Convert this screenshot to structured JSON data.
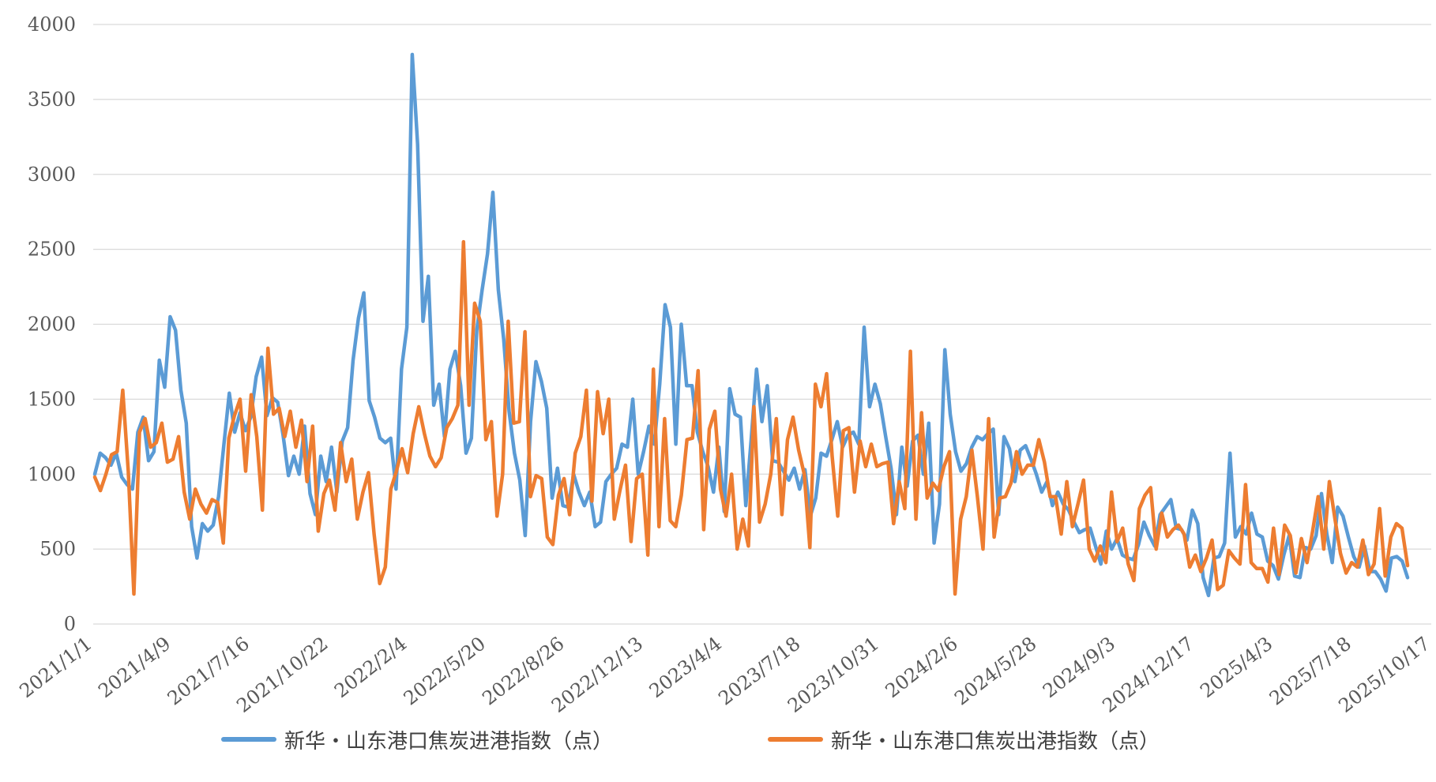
{
  "chart_data": {
    "type": "line",
    "ylim": [
      0,
      4000
    ],
    "yticks": [
      0,
      500,
      1000,
      1500,
      2000,
      2500,
      3000,
      3500,
      4000
    ],
    "grid": true,
    "legend_position": "bottom",
    "xtick_labels": [
      "2021/1/1",
      "2021/4/9",
      "2021/7/16",
      "2021/10/22",
      "2022/2/4",
      "2022/5/20",
      "2022/8/26",
      "2022/12/13",
      "2023/4/4",
      "2023/7/18",
      "2023/10/31",
      "2024/2/6",
      "2024/5/28",
      "2024/9/3",
      "2024/12/17",
      "2025/4/3",
      "2025/7/18",
      "2025/10/17"
    ],
    "series": [
      {
        "name": "新华・山东港口焦炭进港指数（点）",
        "color": "#5B9BD5",
        "values": [
          1000,
          1140,
          1110,
          1060,
          1140,
          980,
          930,
          900,
          1280,
          1380,
          1090,
          1150,
          1760,
          1580,
          2050,
          1960,
          1560,
          1340,
          650,
          440,
          670,
          620,
          660,
          850,
          1200,
          1540,
          1280,
          1410,
          1290,
          1380,
          1650,
          1780,
          1390,
          1510,
          1480,
          1260,
          990,
          1120,
          1000,
          1320,
          870,
          730,
          1120,
          950,
          1180,
          880,
          1220,
          1310,
          1760,
          2040,
          2210,
          1490,
          1380,
          1240,
          1210,
          1240,
          900,
          1700,
          1980,
          3800,
          3200,
          2020,
          2320,
          1460,
          1600,
          1250,
          1700,
          1820,
          1590,
          1140,
          1240,
          1960,
          2230,
          2470,
          2880,
          2230,
          1900,
          1420,
          1140,
          960,
          590,
          1350,
          1750,
          1620,
          1440,
          840,
          1040,
          790,
          780,
          1000,
          880,
          790,
          880,
          650,
          680,
          950,
          1000,
          1040,
          1200,
          1180,
          1500,
          1000,
          1150,
          1320,
          1200,
          1600,
          2130,
          1980,
          1200,
          2000,
          1590,
          1590,
          1280,
          1150,
          1050,
          880,
          1180,
          750,
          1570,
          1400,
          1380,
          790,
          1230,
          1700,
          1350,
          1590,
          1090,
          1080,
          1020,
          960,
          1040,
          900,
          1030,
          720,
          840,
          1140,
          1120,
          1230,
          1350,
          1180,
          1260,
          1280,
          1200,
          1980,
          1450,
          1600,
          1470,
          1250,
          1040,
          730,
          1180,
          920,
          1220,
          1260,
          1000,
          1340,
          540,
          800,
          1830,
          1400,
          1150,
          1020,
          1070,
          1180,
          1250,
          1230,
          1270,
          1300,
          730,
          1250,
          1170,
          950,
          1160,
          1190,
          1100,
          1000,
          880,
          950,
          790,
          880,
          800,
          760,
          680,
          610,
          630,
          640,
          520,
          400,
          620,
          500,
          570,
          460,
          440,
          430,
          530,
          680,
          590,
          520,
          730,
          780,
          830,
          640,
          630,
          560,
          760,
          670,
          310,
          190,
          440,
          450,
          540,
          1140,
          580,
          650,
          600,
          740,
          600,
          580,
          420,
          390,
          300,
          460,
          590,
          320,
          310,
          510,
          500,
          590,
          870,
          600,
          410,
          780,
          720,
          580,
          450,
          380,
          520,
          350,
          350,
          300,
          220,
          440,
          450,
          420,
          310
        ]
      },
      {
        "name": "新华・山东港口焦炭出港指数（点）",
        "color": "#ED7D31",
        "values": [
          980,
          890,
          1000,
          1130,
          1150,
          1560,
          1020,
          200,
          1280,
          1370,
          1180,
          1210,
          1340,
          1080,
          1100,
          1250,
          880,
          700,
          900,
          800,
          740,
          830,
          810,
          540,
          1240,
          1390,
          1500,
          1020,
          1530,
          1250,
          760,
          1840,
          1400,
          1440,
          1250,
          1420,
          1180,
          1360,
          950,
          1320,
          620,
          870,
          960,
          760,
          1210,
          950,
          1100,
          700,
          880,
          1010,
          600,
          270,
          380,
          900,
          1020,
          1170,
          1010,
          1270,
          1450,
          1270,
          1120,
          1050,
          1110,
          1310,
          1370,
          1460,
          2550,
          1460,
          2140,
          2020,
          1230,
          1350,
          720,
          1000,
          2020,
          1340,
          1350,
          1950,
          850,
          990,
          970,
          580,
          530,
          860,
          970,
          730,
          1140,
          1250,
          1560,
          820,
          1550,
          1270,
          1500,
          700,
          890,
          1060,
          550,
          970,
          1000,
          460,
          1700,
          650,
          1370,
          690,
          650,
          860,
          1230,
          1240,
          1690,
          630,
          1300,
          1420,
          900,
          720,
          1000,
          500,
          700,
          520,
          1450,
          680,
          800,
          1000,
          1370,
          730,
          1230,
          1380,
          1160,
          1000,
          510,
          1600,
          1450,
          1670,
          1120,
          720,
          1290,
          1310,
          880,
          1220,
          1050,
          1200,
          1050,
          1070,
          1080,
          670,
          950,
          770,
          1820,
          700,
          1410,
          840,
          940,
          890,
          1050,
          1150,
          200,
          700,
          850,
          1160,
          850,
          500,
          1370,
          580,
          840,
          850,
          940,
          1150,
          1000,
          1060,
          1060,
          1230,
          1080,
          850,
          850,
          600,
          950,
          650,
          800,
          960,
          500,
          420,
          520,
          410,
          880,
          550,
          640,
          400,
          290,
          770,
          860,
          910,
          500,
          740,
          580,
          630,
          660,
          600,
          380,
          460,
          350,
          440,
          560,
          230,
          260,
          490,
          440,
          400,
          930,
          410,
          370,
          370,
          280,
          640,
          330,
          660,
          590,
          340,
          570,
          410,
          620,
          850,
          500,
          950,
          700,
          470,
          340,
          410,
          380,
          560,
          330,
          400,
          770,
          320,
          580,
          670,
          640,
          390
        ]
      }
    ]
  }
}
